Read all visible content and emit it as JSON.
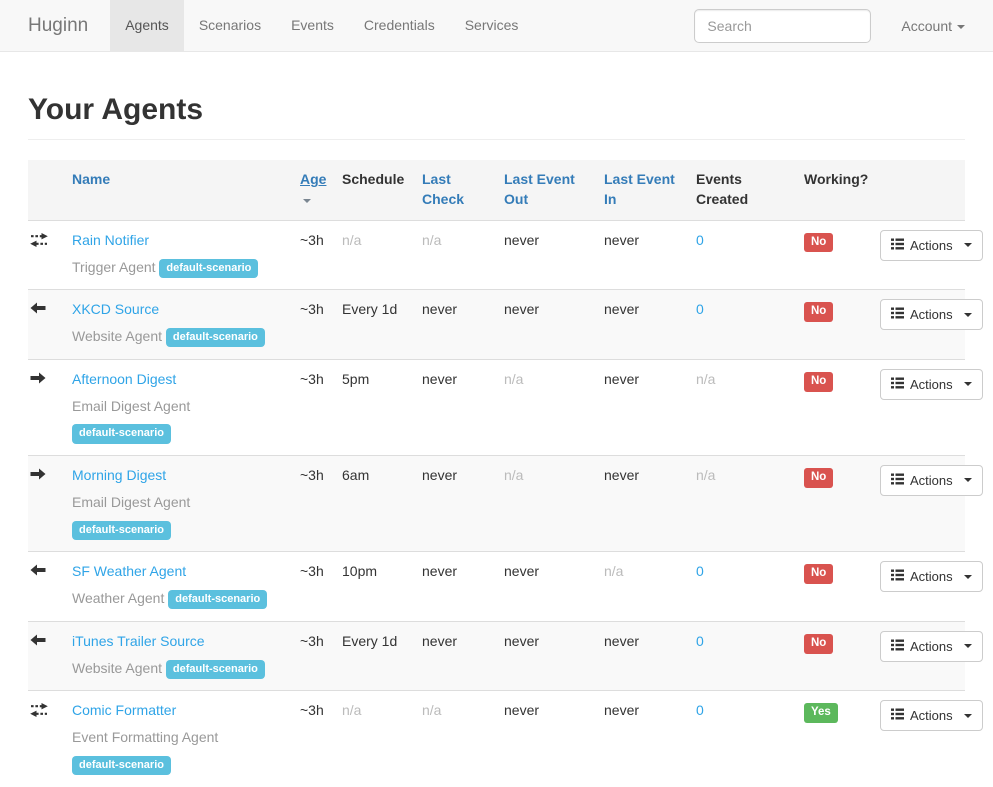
{
  "navbar": {
    "brand": "Huginn",
    "items": [
      {
        "label": "Agents",
        "active": true
      },
      {
        "label": "Scenarios",
        "active": false
      },
      {
        "label": "Events",
        "active": false
      },
      {
        "label": "Credentials",
        "active": false
      },
      {
        "label": "Services",
        "active": false
      }
    ],
    "search_placeholder": "Search",
    "account_label": "Account"
  },
  "page": {
    "title": "Your Agents"
  },
  "table": {
    "headers": [
      {
        "label": "Name"
      },
      {
        "label": "Age"
      },
      {
        "label": "Schedule"
      },
      {
        "label": "Last Check"
      },
      {
        "label": "Last Event Out"
      },
      {
        "label": "Last Event In"
      },
      {
        "label": "Events Created"
      },
      {
        "label": "Working?"
      }
    ],
    "actions_label": "Actions",
    "rows": [
      {
        "direction_icon": "arrows-both-icon",
        "name": "Rain Notifier",
        "type": "Trigger Agent",
        "scenario": "default-scenario",
        "age": "~3h",
        "schedule": "n/a",
        "last_check": "n/a",
        "last_event_out": "never",
        "last_event_in": "never",
        "events_created": "0",
        "working": "No"
      },
      {
        "direction_icon": "arrow-left-icon",
        "name": "XKCD Source",
        "type": "Website Agent",
        "scenario": "default-scenario",
        "age": "~3h",
        "schedule": "Every 1d",
        "last_check": "never",
        "last_event_out": "never",
        "last_event_in": "never",
        "events_created": "0",
        "working": "No"
      },
      {
        "direction_icon": "arrow-right-icon",
        "name": "Afternoon Digest",
        "type": "Email Digest Agent",
        "scenario": "default-scenario",
        "age": "~3h",
        "schedule": "5pm",
        "last_check": "never",
        "last_event_out": "n/a",
        "last_event_in": "never",
        "events_created": "n/a",
        "working": "No"
      },
      {
        "direction_icon": "arrow-right-icon",
        "name": "Morning Digest",
        "type": "Email Digest Agent",
        "scenario": "default-scenario",
        "age": "~3h",
        "schedule": "6am",
        "last_check": "never",
        "last_event_out": "n/a",
        "last_event_in": "never",
        "events_created": "n/a",
        "working": "No"
      },
      {
        "direction_icon": "arrow-left-icon",
        "name": "SF Weather Agent",
        "type": "Weather Agent",
        "scenario": "default-scenario",
        "age": "~3h",
        "schedule": "10pm",
        "last_check": "never",
        "last_event_out": "never",
        "last_event_in": "n/a",
        "events_created": "0",
        "working": "No"
      },
      {
        "direction_icon": "arrow-left-icon",
        "name": "iTunes Trailer Source",
        "type": "Website Agent",
        "scenario": "default-scenario",
        "age": "~3h",
        "schedule": "Every 1d",
        "last_check": "never",
        "last_event_out": "never",
        "last_event_in": "never",
        "events_created": "0",
        "working": "No"
      },
      {
        "direction_icon": "arrows-both-icon",
        "name": "Comic Formatter",
        "type": "Event Formatting Agent",
        "scenario": "default-scenario",
        "age": "~3h",
        "schedule": "n/a",
        "last_check": "n/a",
        "last_event_out": "never",
        "last_event_in": "never",
        "events_created": "0",
        "working": "Yes"
      }
    ]
  },
  "colors": {
    "link": "#2fa4e7",
    "header_link": "#347cb8",
    "scenario_badge": "#5bc0de",
    "working_no": "#d9534f",
    "working_yes": "#5cb85c",
    "navbar_bg": "#f8f8f8",
    "active_tab_bg": "#e7e7e7"
  }
}
